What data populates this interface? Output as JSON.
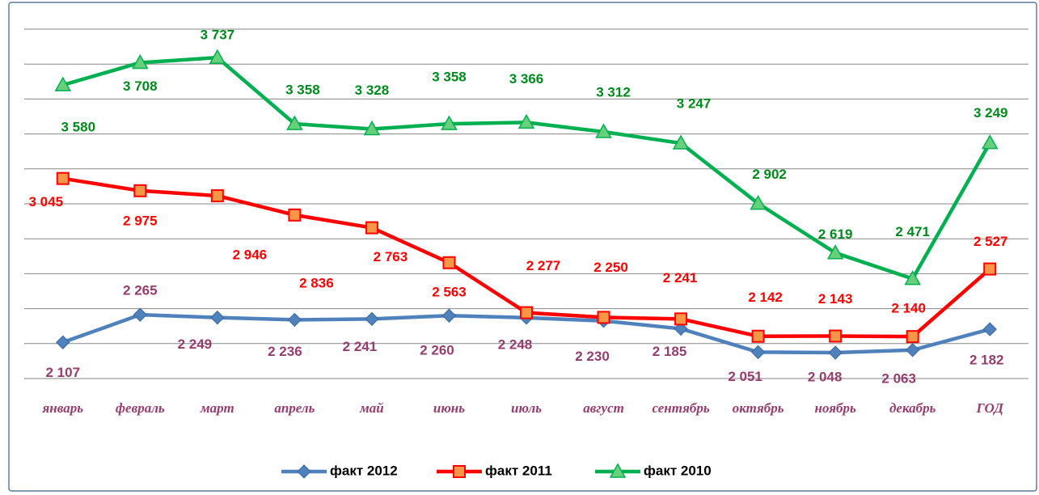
{
  "chart_data": {
    "type": "line",
    "categories": [
      "январь",
      "февраль",
      "март",
      "апрель",
      "май",
      "июнь",
      "июль",
      "август",
      "сентябрь",
      "октябрь",
      "ноябрь",
      "декабрь",
      "ГОД"
    ],
    "series": [
      {
        "name": "факт 2012",
        "color": "#4f81bd",
        "label_color": "#953d6e",
        "values": [
          2107,
          2265,
          2249,
          2236,
          2241,
          2260,
          2248,
          2230,
          2185,
          2051,
          2048,
          2063,
          2182
        ],
        "value_labels": [
          "2 107",
          "2 265",
          "2 249",
          "2 236",
          "2 241",
          "2 260",
          "2 248",
          "2 230",
          "2 185",
          "2 051",
          "2 048",
          "2 063",
          "2 182"
        ]
      },
      {
        "name": "факт 2011",
        "color": "#ff0000",
        "label_color": "#ff0000",
        "values": [
          3045,
          2975,
          2946,
          2836,
          2763,
          2563,
          2277,
          2250,
          2241,
          2142,
          2143,
          2140,
          2527
        ],
        "value_labels": [
          "3 045",
          "2 975",
          "2 946",
          "2 836",
          "2 763",
          "2 563",
          "2 277",
          "2 250",
          "2 241",
          "2 142",
          "2 143",
          "2 140",
          "2 527"
        ]
      },
      {
        "name": "факт 2010",
        "color": "#00b050",
        "label_color": "#008a1e",
        "values": [
          3580,
          3708,
          3737,
          3358,
          3328,
          3358,
          3366,
          3312,
          3247,
          2902,
          2619,
          2471,
          3249
        ],
        "value_labels": [
          "3 580",
          "3 708",
          "3 737",
          "3 358",
          "3 328",
          "3 358",
          "3 366",
          "3 312",
          "3 247",
          "2 902",
          "2 619",
          "2 471",
          "3 249"
        ]
      }
    ],
    "ylim": [
      1900,
      3900
    ],
    "yticks": [
      1900,
      2100,
      2300,
      2500,
      2700,
      2900,
      3100,
      3300,
      3500,
      3700,
      3900
    ],
    "grid": true,
    "legend": "bottom"
  }
}
